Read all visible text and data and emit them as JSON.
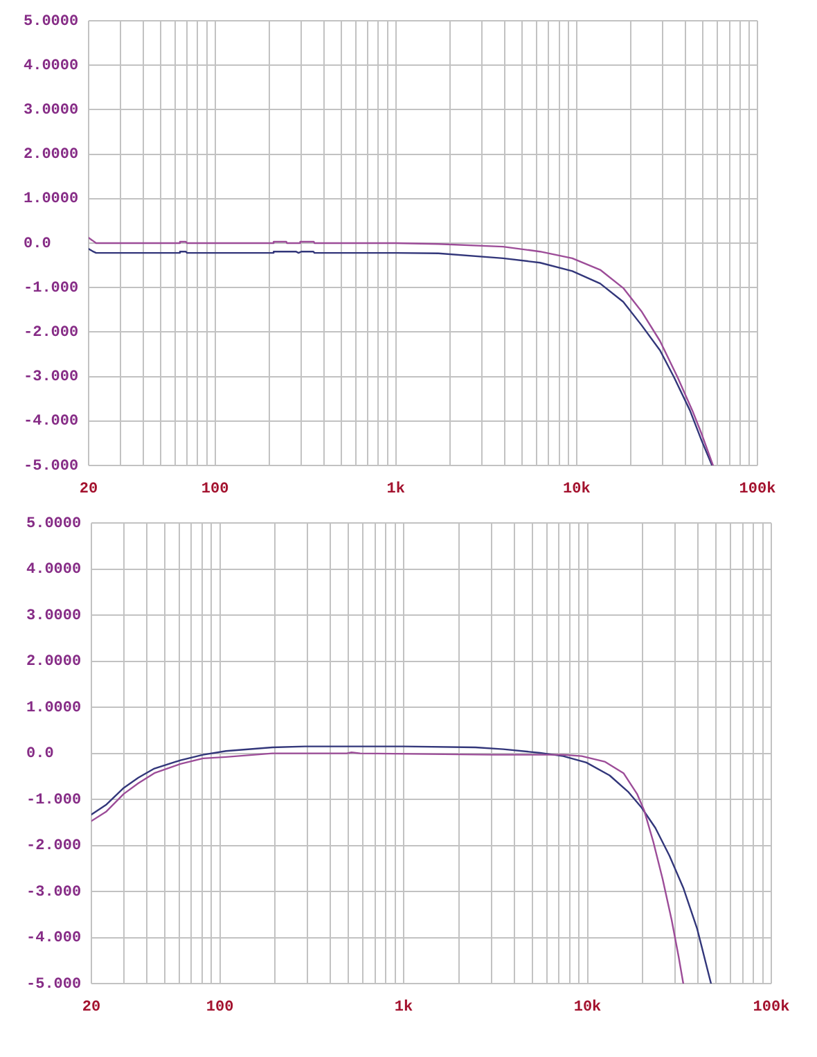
{
  "chart_data": [
    {
      "type": "line",
      "log": "x",
      "grid": true,
      "line_style": "solid",
      "marker": "none",
      "xlim": [
        20,
        100000
      ],
      "xticks": [
        {
          "value": 20,
          "label": "20"
        },
        {
          "value": 30,
          "label": null
        },
        {
          "value": 40,
          "label": null
        },
        {
          "value": 50,
          "label": null
        },
        {
          "value": 60,
          "label": null
        },
        {
          "value": 70,
          "label": null
        },
        {
          "value": 80,
          "label": null
        },
        {
          "value": 90,
          "label": null
        },
        {
          "value": 100,
          "label": "100"
        },
        {
          "value": 200,
          "label": null
        },
        {
          "value": 300,
          "label": null
        },
        {
          "value": 400,
          "label": null
        },
        {
          "value": 500,
          "label": null
        },
        {
          "value": 600,
          "label": null
        },
        {
          "value": 700,
          "label": null
        },
        {
          "value": 800,
          "label": null
        },
        {
          "value": 900,
          "label": null
        },
        {
          "value": 1000,
          "label": "1k"
        },
        {
          "value": 2000,
          "label": null
        },
        {
          "value": 3000,
          "label": null
        },
        {
          "value": 4000,
          "label": null
        },
        {
          "value": 5000,
          "label": null
        },
        {
          "value": 6000,
          "label": null
        },
        {
          "value": 7000,
          "label": null
        },
        {
          "value": 8000,
          "label": null
        },
        {
          "value": 9000,
          "label": null
        },
        {
          "value": 10000,
          "label": "10k"
        },
        {
          "value": 20000,
          "label": null
        },
        {
          "value": 30000,
          "label": null
        },
        {
          "value": 40000,
          "label": null
        },
        {
          "value": 50000,
          "label": null
        },
        {
          "value": 60000,
          "label": null
        },
        {
          "value": 70000,
          "label": null
        },
        {
          "value": 80000,
          "label": null
        },
        {
          "value": 90000,
          "label": null
        },
        {
          "value": 100000,
          "label": "100k"
        }
      ],
      "ylim": [
        -5,
        5
      ],
      "yticks": [
        {
          "value": 5,
          "label": "5.0000"
        },
        {
          "value": 4,
          "label": "4.0000"
        },
        {
          "value": 3,
          "label": "3.0000"
        },
        {
          "value": 2,
          "label": "2.0000"
        },
        {
          "value": 1,
          "label": "1.0000"
        },
        {
          "value": 0,
          "label": "0.0"
        },
        {
          "value": -1,
          "label": "-1.000"
        },
        {
          "value": -2,
          "label": "-2.000"
        },
        {
          "value": -3,
          "label": "-3.000"
        },
        {
          "value": -4,
          "label": "-4.000"
        },
        {
          "value": -5,
          "label": "-5.000"
        }
      ],
      "series": [
        {
          "color": "#9c4c98",
          "x": [
            20,
            21,
            22,
            63,
            64,
            69,
            70,
            210,
            211,
            248,
            250,
            295,
            296,
            352,
            355,
            1000,
            1720,
            3920,
            6270,
            9460,
            13500,
            18100,
            22800,
            28900,
            36100,
            43600,
            49000,
            56800
          ],
          "values": [
            0.12,
            0.06,
            0.0,
            0.0,
            0.03,
            0.03,
            0.0,
            0.0,
            0.03,
            0.03,
            0.0,
            0.0,
            0.03,
            0.03,
            0.0,
            0.0,
            -0.02,
            -0.08,
            -0.19,
            -0.34,
            -0.6,
            -1.01,
            -1.53,
            -2.2,
            -3.01,
            -3.76,
            -4.28,
            -5.0
          ]
        },
        {
          "color": "#32367a",
          "x": [
            20,
            21,
            22,
            63,
            64,
            69,
            70,
            210,
            211,
            280,
            290,
            300,
            350,
            355,
            1000,
            1720,
            3920,
            6270,
            9460,
            13500,
            18100,
            22800,
            28900,
            34500,
            42300,
            49000,
            56100
          ],
          "values": [
            -0.13,
            -0.18,
            -0.22,
            -0.22,
            -0.19,
            -0.19,
            -0.22,
            -0.22,
            -0.19,
            -0.19,
            -0.22,
            -0.19,
            -0.19,
            -0.22,
            -0.22,
            -0.23,
            -0.34,
            -0.44,
            -0.63,
            -0.91,
            -1.32,
            -1.84,
            -2.41,
            -3.01,
            -3.76,
            -4.43,
            -5.0
          ]
        }
      ]
    },
    {
      "type": "line",
      "log": "x",
      "grid": true,
      "line_style": "solid",
      "marker": "none",
      "xlim": [
        20,
        100000
      ],
      "xticks": [
        {
          "value": 20,
          "label": "20"
        },
        {
          "value": 30,
          "label": null
        },
        {
          "value": 40,
          "label": null
        },
        {
          "value": 50,
          "label": null
        },
        {
          "value": 60,
          "label": null
        },
        {
          "value": 70,
          "label": null
        },
        {
          "value": 80,
          "label": null
        },
        {
          "value": 90,
          "label": null
        },
        {
          "value": 100,
          "label": "100"
        },
        {
          "value": 200,
          "label": null
        },
        {
          "value": 300,
          "label": null
        },
        {
          "value": 400,
          "label": null
        },
        {
          "value": 500,
          "label": null
        },
        {
          "value": 600,
          "label": null
        },
        {
          "value": 700,
          "label": null
        },
        {
          "value": 800,
          "label": null
        },
        {
          "value": 900,
          "label": null
        },
        {
          "value": 1000,
          "label": "1k"
        },
        {
          "value": 2000,
          "label": null
        },
        {
          "value": 3000,
          "label": null
        },
        {
          "value": 4000,
          "label": null
        },
        {
          "value": 5000,
          "label": null
        },
        {
          "value": 6000,
          "label": null
        },
        {
          "value": 7000,
          "label": null
        },
        {
          "value": 8000,
          "label": null
        },
        {
          "value": 9000,
          "label": null
        },
        {
          "value": 10000,
          "label": "10k"
        },
        {
          "value": 20000,
          "label": null
        },
        {
          "value": 30000,
          "label": null
        },
        {
          "value": 40000,
          "label": null
        },
        {
          "value": 50000,
          "label": null
        },
        {
          "value": 60000,
          "label": null
        },
        {
          "value": 70000,
          "label": null
        },
        {
          "value": 80000,
          "label": null
        },
        {
          "value": 90000,
          "label": null
        },
        {
          "value": 100000,
          "label": "100k"
        }
      ],
      "ylim": [
        -5,
        5
      ],
      "yticks": [
        {
          "value": 5,
          "label": "5.0000"
        },
        {
          "value": 4,
          "label": "4.0000"
        },
        {
          "value": 3,
          "label": "3.0000"
        },
        {
          "value": 2,
          "label": "2.0000"
        },
        {
          "value": 1,
          "label": "1.0000"
        },
        {
          "value": 0,
          "label": "0.0"
        },
        {
          "value": -1,
          "label": "-1.000"
        },
        {
          "value": -2,
          "label": "-2.000"
        },
        {
          "value": -3,
          "label": "-3.000"
        },
        {
          "value": -4,
          "label": "-4.000"
        },
        {
          "value": -5,
          "label": "-5.000"
        }
      ],
      "series": [
        {
          "color": "#9c4c98",
          "x": [
            20,
            24,
            30,
            36,
            44,
            61,
            81,
            108,
            193,
            490,
            520,
            580,
            3100,
            7380,
            9310,
            12400,
            15700,
            18600,
            20300,
            22800,
            25600,
            28700,
            31300,
            33200
          ],
          "values": [
            -1.47,
            -1.27,
            -0.88,
            -0.65,
            -0.43,
            -0.23,
            -0.11,
            -0.08,
            0.0,
            0.0,
            0.02,
            0.0,
            -0.03,
            -0.03,
            -0.06,
            -0.18,
            -0.43,
            -0.88,
            -1.23,
            -1.92,
            -2.72,
            -3.62,
            -4.41,
            -5.0
          ]
        },
        {
          "color": "#32367a",
          "x": [
            20,
            24,
            30,
            36,
            44,
            61,
            81,
            108,
            193,
            290,
            1000,
            2460,
            3480,
            5530,
            7380,
            9860,
            13200,
            16600,
            19700,
            23400,
            27900,
            33200,
            39500,
            47000
          ],
          "values": [
            -1.33,
            -1.12,
            -0.75,
            -0.53,
            -0.33,
            -0.15,
            -0.03,
            0.05,
            0.13,
            0.15,
            0.15,
            0.13,
            0.09,
            0.01,
            -0.06,
            -0.2,
            -0.48,
            -0.83,
            -1.18,
            -1.62,
            -2.22,
            -2.92,
            -3.81,
            -5.0
          ]
        }
      ]
    }
  ]
}
